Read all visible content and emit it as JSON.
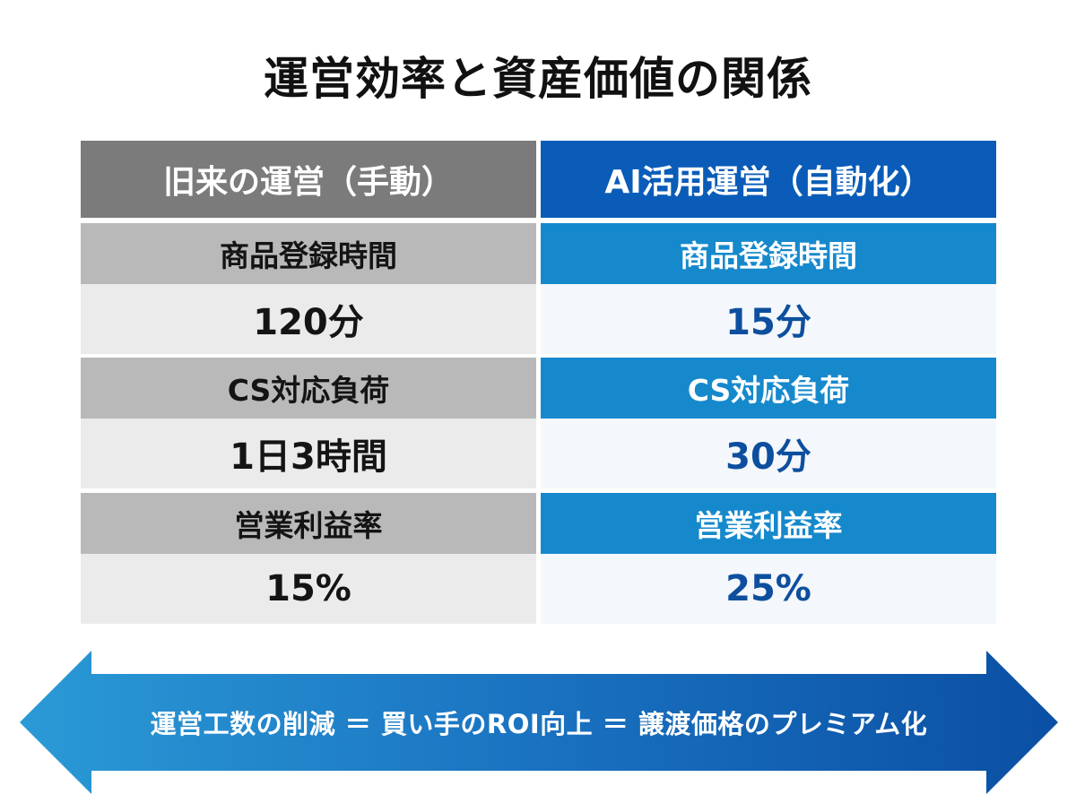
{
  "title": "運営効率と資産価値の関係",
  "columns": [
    {
      "header": "旧来の運営（手動）",
      "rows": [
        {
          "label": "商品登録時間",
          "value": "120分"
        },
        {
          "label": "CS対応負荷",
          "value": "1日3時間"
        },
        {
          "label": "営業利益率",
          "value": "15%"
        }
      ]
    },
    {
      "header": "AI活用運営（自動化）",
      "rows": [
        {
          "label": "商品登録時間",
          "value": "15分"
        },
        {
          "label": "CS対応負荷",
          "value": "30分"
        },
        {
          "label": "営業利益率",
          "value": "25%"
        }
      ]
    }
  ],
  "arrow_text": "運営工数の削減 ＝ 買い手のROI向上 ＝ 譲渡価格のプレミアム化",
  "colors": {
    "legacy_header": "#7b7b7b",
    "legacy_label": "#b9b9b9",
    "legacy_value_bg": "#ebebeb",
    "ai_header": "#0a5cb8",
    "ai_label": "#1689cc",
    "ai_value_text": "#0d4f9e",
    "arrow_light": "#2a9ad6",
    "arrow_dark": "#0a4fa3"
  }
}
